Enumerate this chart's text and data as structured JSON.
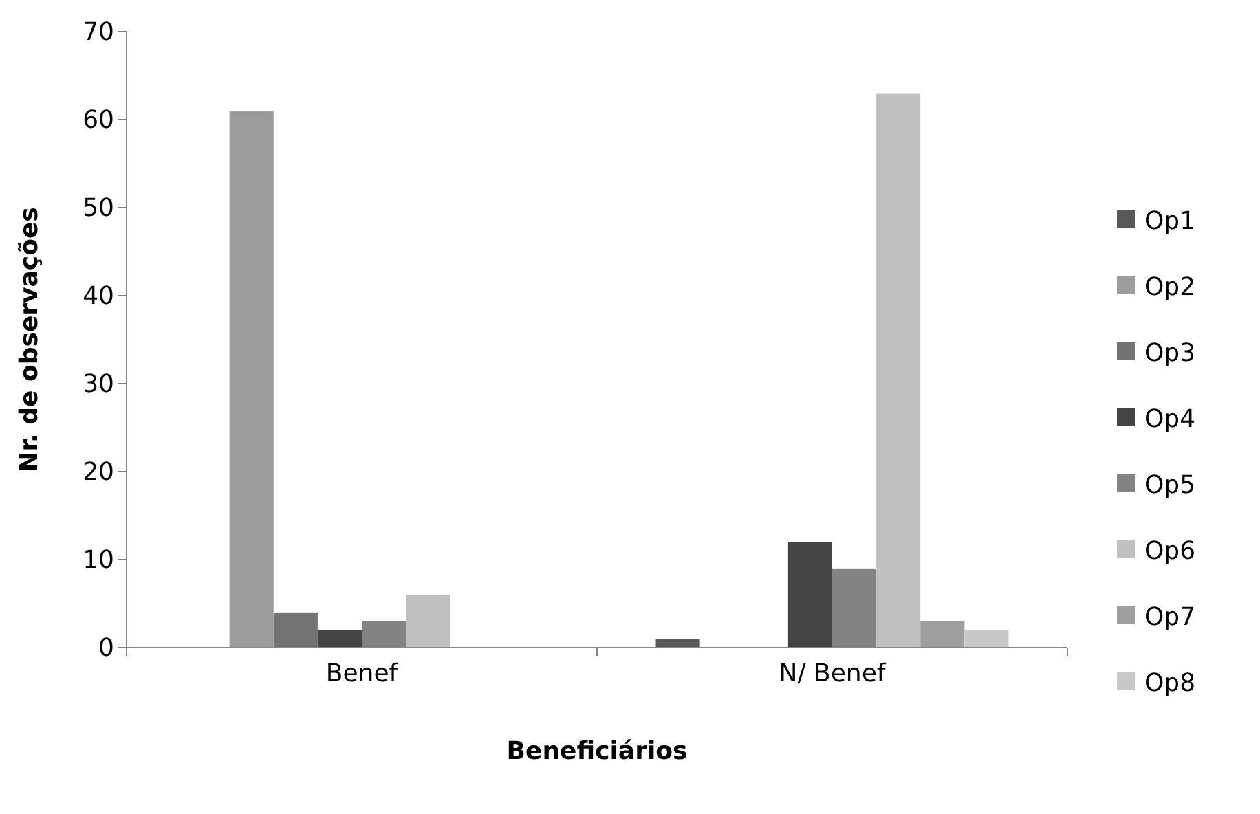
{
  "chart_data": {
    "type": "bar",
    "xlabel": "Beneficiários",
    "ylabel": "Nr. de observações",
    "categories": [
      "Benef",
      "N/ Benef"
    ],
    "series": [
      {
        "name": "Op1",
        "color": "#595959",
        "values": [
          0,
          1
        ]
      },
      {
        "name": "Op2",
        "color": "#9c9c9c",
        "values": [
          61,
          0
        ]
      },
      {
        "name": "Op3",
        "color": "#737373",
        "values": [
          4,
          0
        ]
      },
      {
        "name": "Op4",
        "color": "#444444",
        "values": [
          2,
          12
        ]
      },
      {
        "name": "Op5",
        "color": "#838383",
        "values": [
          3,
          9
        ]
      },
      {
        "name": "Op6",
        "color": "#c0c0c0",
        "values": [
          6,
          63
        ]
      },
      {
        "name": "Op7",
        "color": "#9e9e9e",
        "values": [
          0,
          3
        ]
      },
      {
        "name": "Op8",
        "color": "#c8c8c8",
        "values": [
          0,
          2
        ]
      }
    ],
    "ylim": [
      0,
      70
    ],
    "yticks": [
      0,
      10,
      20,
      30,
      40,
      50,
      60,
      70
    ],
    "grid": false,
    "legend": "right"
  }
}
